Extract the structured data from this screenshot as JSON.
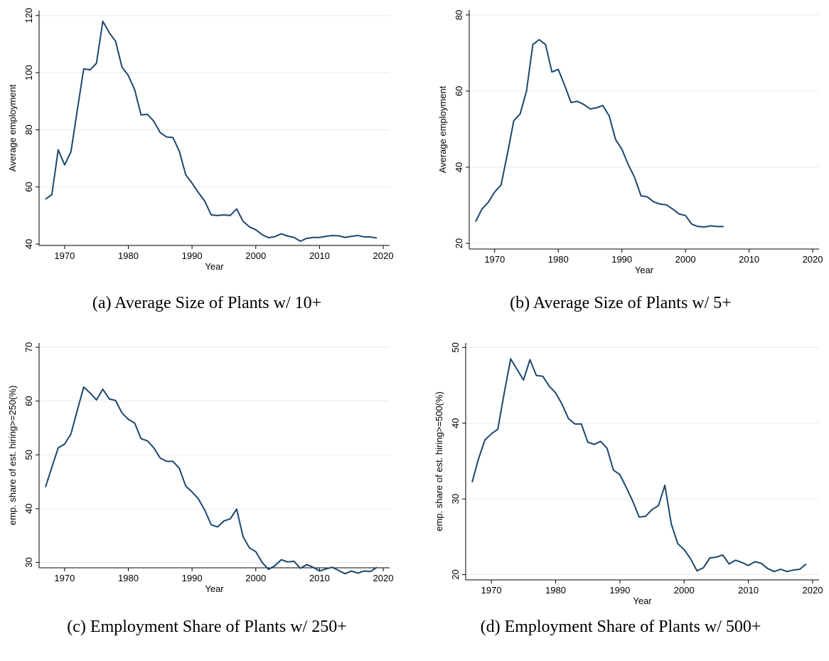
{
  "chart_data": [
    {
      "type": "line",
      "caption": "(a) Average Size of Plants w/ 10+",
      "xlabel": "Year",
      "ylabel": "Average employment",
      "color": "#1a476f",
      "grid": true,
      "x": [
        1967,
        1968,
        1969,
        1970,
        1971,
        1972,
        1973,
        1974,
        1975,
        1976,
        1977,
        1978,
        1979,
        1980,
        1981,
        1982,
        1983,
        1984,
        1985,
        1986,
        1987,
        1988,
        1989,
        1990,
        1991,
        1992,
        1993,
        1994,
        1995,
        1996,
        1997,
        1998,
        1999,
        2000,
        2001,
        2002,
        2003,
        2004,
        2005,
        2006,
        2007,
        2008,
        2009,
        2010,
        2011,
        2012,
        2013,
        2014,
        2015,
        2016,
        2017,
        2018,
        2019
      ],
      "values": [
        55.7,
        57.3,
        73,
        67.7,
        72.3,
        87,
        101.3,
        101,
        103.3,
        118,
        114,
        111,
        102,
        99,
        94,
        85.2,
        85.4,
        83,
        79,
        77.5,
        77.3,
        72.5,
        64.3,
        61.3,
        58,
        55,
        50.2,
        50,
        50.2,
        50,
        52.3,
        48,
        46,
        45,
        43.3,
        42.2,
        42.6,
        43.6,
        42.8,
        42.3,
        41,
        42,
        42.3,
        42.3,
        42.7,
        43,
        42.9,
        42.3,
        42.7,
        43,
        42.5,
        42.5,
        42.1
      ],
      "xlim": [
        1966,
        2021
      ],
      "ylim": [
        39.5,
        121.7
      ],
      "xticks": [
        1970,
        1980,
        1990,
        2000,
        2010,
        2020
      ],
      "yticks": [
        40,
        60,
        80,
        100,
        120
      ]
    },
    {
      "type": "line",
      "caption": "(b) Average Size of Plants w/ 5+",
      "xlabel": "Year",
      "ylabel": "Average employment",
      "color": "#1a476f",
      "grid": true,
      "x": [
        1967,
        1968,
        1969,
        1970,
        1971,
        1972,
        1973,
        1974,
        1975,
        1976,
        1977,
        1978,
        1979,
        1980,
        1981,
        1982,
        1983,
        1984,
        1985,
        1986,
        1987,
        1988,
        1989,
        1990,
        1991,
        1992,
        1993,
        1994,
        1995,
        1996,
        1997,
        1998,
        1999,
        2000,
        2001,
        2002,
        2003,
        2004,
        2005,
        2006
      ],
      "values": [
        25.7,
        29,
        30.8,
        33.5,
        35.3,
        43.5,
        52.2,
        54,
        60,
        72.2,
        73.5,
        72.2,
        65,
        65.7,
        61.5,
        57,
        57.3,
        56.5,
        55.3,
        55.6,
        56.2,
        53.5,
        47.3,
        44.7,
        40.7,
        37.3,
        32.5,
        32.2,
        30.9,
        30.3,
        30.1,
        29,
        27.7,
        27.3,
        25,
        24.4,
        24.3,
        24.6,
        24.4,
        24.4
      ],
      "xlim": [
        1966,
        2021
      ],
      "ylim": [
        18.5,
        81.3
      ],
      "xticks": [
        1970,
        1980,
        1990,
        2000,
        2010,
        2020
      ],
      "yticks": [
        20,
        40,
        60,
        80
      ]
    },
    {
      "type": "line",
      "caption": "(c) Employment Share of Plants w/ 250+",
      "xlabel": "Year",
      "ylabel": "emp. share of est. hiring>=250(%)",
      "color": "#1a476f",
      "grid": true,
      "x": [
        1967,
        1968,
        1969,
        1970,
        1971,
        1972,
        1973,
        1974,
        1975,
        1976,
        1977,
        1978,
        1979,
        1980,
        1981,
        1982,
        1983,
        1984,
        1985,
        1986,
        1987,
        1988,
        1989,
        1990,
        1991,
        1992,
        1993,
        1994,
        1995,
        1996,
        1997,
        1998,
        1999,
        2000,
        2001,
        2002,
        2003,
        2004,
        2005,
        2006,
        2007,
        2008,
        2009,
        2010,
        2011,
        2012,
        2013,
        2014,
        2015,
        2016,
        2017,
        2018,
        2019
      ],
      "values": [
        44,
        47.7,
        51.3,
        52,
        53.9,
        58.3,
        62.6,
        61.5,
        60.2,
        62.2,
        60.4,
        60.1,
        57.8,
        56.6,
        55.9,
        53,
        52.6,
        51.3,
        49.4,
        48.8,
        48.8,
        47.5,
        44.2,
        43.1,
        41.8,
        39.7,
        37,
        36.6,
        37.7,
        38.1,
        39.9,
        34.8,
        32.7,
        32,
        30,
        28.7,
        29.4,
        30.5,
        30.1,
        30.2,
        28.9,
        29.6,
        29.1,
        28.4,
        28.8,
        29.1,
        28.5,
        27.9,
        28.4,
        28,
        28.4,
        28.3,
        29.1
      ],
      "xlim": [
        1966,
        2021
      ],
      "ylim": [
        29,
        70.8
      ],
      "xticks": [
        1970,
        1980,
        1990,
        2000,
        2010,
        2020
      ],
      "yticks": [
        30,
        40,
        50,
        60,
        70
      ]
    },
    {
      "type": "line",
      "caption": "(d) Employment Share of Plants w/ 500+",
      "xlabel": "Year",
      "ylabel": "emp. share of est. hiring>=500(%)",
      "color": "#1a476f",
      "grid": true,
      "x": [
        1967,
        1968,
        1969,
        1970,
        1971,
        1972,
        1973,
        1974,
        1975,
        1976,
        1977,
        1978,
        1979,
        1980,
        1981,
        1982,
        1983,
        1984,
        1985,
        1986,
        1987,
        1988,
        1989,
        1990,
        1991,
        1992,
        1993,
        1994,
        1995,
        1996,
        1997,
        1998,
        1999,
        2000,
        2001,
        2002,
        2003,
        2004,
        2005,
        2006,
        2007,
        2008,
        2009,
        2010,
        2011,
        2012,
        2013,
        2014,
        2015,
        2016,
        2017,
        2018,
        2019
      ],
      "values": [
        32.2,
        35.3,
        37.8,
        38.6,
        39.2,
        44,
        48.5,
        47.1,
        45.7,
        48.4,
        46.3,
        46.2,
        44.9,
        44,
        42.5,
        40.6,
        39.9,
        39.9,
        37.5,
        37.2,
        37.6,
        36.7,
        33.8,
        33.2,
        31.5,
        29.7,
        27.6,
        27.7,
        28.6,
        29.1,
        31.8,
        26.7,
        24.1,
        23.3,
        22.1,
        20.5,
        20.9,
        22.2,
        22.3,
        22.6,
        21.4,
        21.9,
        21.6,
        21.2,
        21.7,
        21.5,
        20.8,
        20.4,
        20.7,
        20.4,
        20.6,
        20.7,
        21.4
      ],
      "xlim": [
        1966,
        2021
      ],
      "ylim": [
        19.3,
        50.6
      ],
      "xticks": [
        1970,
        1980,
        1990,
        2000,
        2010,
        2020
      ],
      "yticks": [
        20,
        30,
        40,
        50
      ]
    }
  ]
}
